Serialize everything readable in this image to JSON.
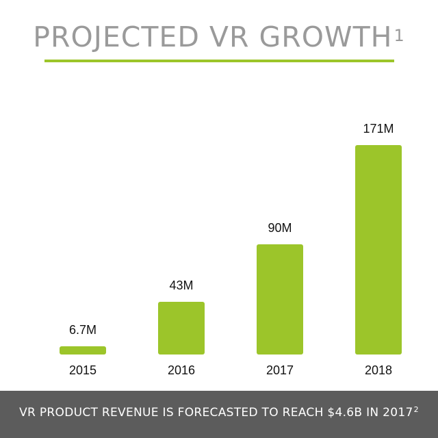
{
  "header": {
    "title": "PROJECTED VR GROWTH",
    "title_footnote": "1"
  },
  "footer": {
    "text": "VR PRODUCT REVENUE IS FORECASTED TO REACH $4.6B IN 2017",
    "footnote": "2"
  },
  "colors": {
    "bar": "#9cc52a",
    "title": "#9a9a9a",
    "footer_bg": "#5c5c5c"
  },
  "chart_data": {
    "type": "bar",
    "categories": [
      "2015",
      "2016",
      "2017",
      "2018"
    ],
    "values": [
      6.7,
      43,
      90,
      171
    ],
    "data_labels": [
      "6.7M",
      "43M",
      "90M",
      "171M"
    ],
    "ylim": [
      0,
      171
    ],
    "grid": false,
    "legend": "none"
  }
}
